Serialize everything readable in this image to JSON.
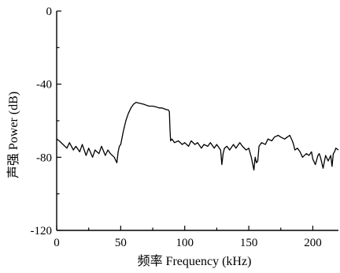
{
  "chart_data": {
    "type": "line",
    "title": "",
    "xlabel": "频率  Frequency (kHz)",
    "ylabel": "声强  Power (dB)",
    "xlim": [
      0,
      220
    ],
    "ylim": [
      -120,
      0
    ],
    "xticks": [
      0,
      50,
      100,
      150,
      200
    ],
    "xtick_labels": [
      "0",
      "50",
      "100",
      "150",
      "200"
    ],
    "yticks": [
      0,
      -40,
      -80,
      -120
    ],
    "ytick_labels": [
      "0",
      "-40",
      "-80",
      "-120"
    ],
    "grid": false,
    "legend": "none",
    "line_color": "#000000",
    "series": [
      {
        "x": [
          0,
          2,
          5,
          8,
          10,
          13,
          15,
          18,
          20,
          23,
          25,
          28,
          30,
          33,
          35,
          38,
          40,
          42,
          45,
          47,
          48,
          49,
          50,
          52,
          54,
          56,
          58,
          60,
          62,
          65,
          68,
          70,
          72,
          75,
          78,
          80,
          82,
          84,
          86,
          87,
          88,
          88.5,
          89,
          90,
          92,
          95,
          98,
          100,
          103,
          105,
          108,
          110,
          113,
          115,
          118,
          120,
          123,
          125,
          128,
          129,
          130,
          131,
          133,
          135,
          138,
          140,
          143,
          145,
          148,
          150,
          152,
          154,
          155,
          156,
          157,
          158,
          160,
          163,
          165,
          168,
          170,
          173,
          175,
          178,
          180,
          182,
          184,
          185,
          186,
          188,
          190,
          192,
          195,
          197,
          199,
          200,
          202,
          204,
          205,
          206,
          208,
          210,
          212,
          214,
          215,
          216,
          217,
          218,
          220
        ],
        "y": [
          -70,
          -71,
          -73,
          -75,
          -72,
          -76,
          -74,
          -77,
          -73,
          -79,
          -75,
          -80,
          -76,
          -78,
          -74,
          -79,
          -76,
          -78,
          -80,
          -83,
          -77,
          -74,
          -73,
          -66,
          -60,
          -56,
          -53,
          -51,
          -50,
          -50.5,
          -51,
          -51.5,
          -52,
          -52,
          -52.5,
          -53,
          -53,
          -53.5,
          -54,
          -54,
          -55,
          -65,
          -71,
          -70,
          -72,
          -71,
          -73,
          -72,
          -74,
          -71,
          -73,
          -72,
          -75,
          -73,
          -74,
          -72,
          -75,
          -73,
          -76,
          -84,
          -78,
          -75,
          -74,
          -76,
          -73,
          -75,
          -72,
          -74,
          -76,
          -75,
          -80,
          -87,
          -80,
          -83,
          -82,
          -74,
          -72,
          -73,
          -70,
          -71,
          -69,
          -68,
          -69,
          -70,
          -69,
          -68,
          -71,
          -73,
          -76,
          -75,
          -77,
          -80,
          -78,
          -79,
          -77,
          -81,
          -84,
          -79,
          -78,
          -80,
          -86,
          -79,
          -82,
          -79,
          -85,
          -78,
          -77,
          -75,
          -76
        ]
      }
    ]
  }
}
